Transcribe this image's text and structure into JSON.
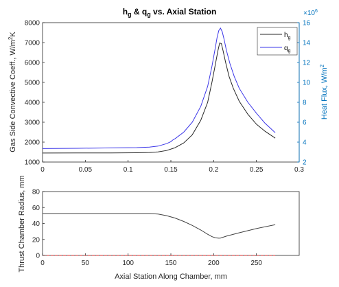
{
  "colors": {
    "hg": "#262626",
    "qg": "#3a35e8",
    "right_axis": "#0072bd",
    "radius": "#404040",
    "baseline": "#d92b2b",
    "axis": "#262626"
  },
  "chart_data": [
    {
      "type": "line",
      "title_main_h": "h",
      "title_sub_g1": "g",
      "title_amp": " & q",
      "title_sub_g2": "g",
      "title_rest": " vs. Axial Station",
      "ylabel_left_pre": "Gas Side Convective Coeff., W/m",
      "ylabel_left_sup": "2",
      "ylabel_left_post": "K",
      "ylabel_right": "Heat Flux, W/m",
      "ylabel_right_sup": "2",
      "right_exponent_base": "×10",
      "right_exponent_sup": "6",
      "xlim": [
        0,
        0.3
      ],
      "ylim_left": [
        1000,
        8000
      ],
      "ylim_right": [
        2,
        16
      ],
      "x_ticks": [
        "0",
        "0.05",
        "0.1",
        "0.15",
        "0.2",
        "0.25",
        "0.3"
      ],
      "y_ticks_left": [
        "1000",
        "2000",
        "3000",
        "4000",
        "5000",
        "6000",
        "7000",
        "8000"
      ],
      "y_ticks_right": [
        "2",
        "4",
        "6",
        "8",
        "10",
        "12",
        "14",
        "16"
      ],
      "legend_placement": "top-right",
      "series": [
        {
          "name_base": "h",
          "name_sub": "g",
          "axis": "left",
          "x": [
            0,
            0.04,
            0.08,
            0.11,
            0.125,
            0.135,
            0.145,
            0.155,
            0.165,
            0.175,
            0.185,
            0.193,
            0.198,
            0.202,
            0.205,
            0.207,
            0.209,
            0.211,
            0.214,
            0.218,
            0.223,
            0.23,
            0.24,
            0.25,
            0.26,
            0.272
          ],
          "values": [
            1450,
            1455,
            1460,
            1465,
            1480,
            1510,
            1580,
            1720,
            1960,
            2370,
            3100,
            4000,
            5000,
            5900,
            6600,
            6980,
            6950,
            6600,
            6000,
            5300,
            4700,
            4050,
            3400,
            2900,
            2550,
            2200
          ]
        },
        {
          "name_base": "q",
          "name_sub": "g",
          "axis": "right",
          "x": [
            0,
            0.04,
            0.08,
            0.11,
            0.125,
            0.135,
            0.145,
            0.15,
            0.152,
            0.155,
            0.165,
            0.175,
            0.185,
            0.193,
            0.198,
            0.202,
            0.204,
            0.206,
            0.208,
            0.21,
            0.212,
            0.215,
            0.219,
            0.224,
            0.23,
            0.24,
            0.25,
            0.26,
            0.272
          ],
          "values": [
            3.35,
            3.38,
            3.42,
            3.45,
            3.5,
            3.6,
            3.85,
            4.05,
            4.2,
            4.35,
            5.0,
            6.0,
            7.6,
            9.6,
            11.6,
            13.5,
            14.5,
            15.2,
            15.45,
            15.1,
            14.4,
            13.2,
            11.9,
            10.6,
            9.4,
            8.0,
            6.9,
            5.9,
            4.95
          ]
        }
      ]
    },
    {
      "type": "line",
      "ylabel": "Thrust Chamber Radius, mm",
      "xlabel": "Axial Station Along Chamber, mm",
      "xlim": [
        0,
        300
      ],
      "ylim": [
        0,
        80
      ],
      "x_ticks": [
        "0",
        "50",
        "100",
        "150",
        "200",
        "250"
      ],
      "y_ticks": [
        "0",
        "20",
        "40",
        "60",
        "80"
      ],
      "series": [
        {
          "role": "radius",
          "x": [
            0,
            50,
            100,
            125,
            135,
            145,
            155,
            165,
            175,
            185,
            193,
            198,
            202,
            206,
            208,
            215,
            230,
            250,
            272
          ],
          "values": [
            52.5,
            52.5,
            52.5,
            52.5,
            51.8,
            49.8,
            46.8,
            42.6,
            37.6,
            31.8,
            26.5,
            23.6,
            22.0,
            21.6,
            21.8,
            24.2,
            28.4,
            33.6,
            38.5
          ]
        },
        {
          "role": "baseline",
          "x": [
            0,
            272
          ],
          "values": [
            0,
            0
          ]
        }
      ]
    }
  ]
}
